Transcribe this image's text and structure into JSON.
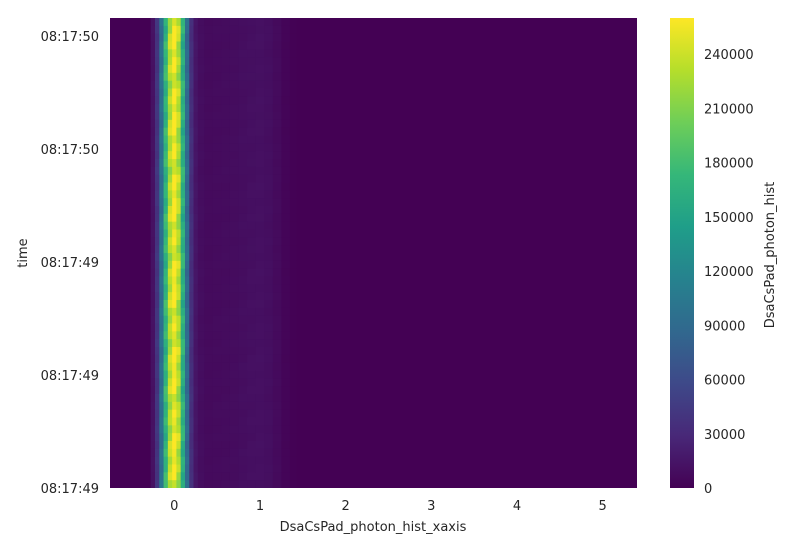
{
  "chart_data": {
    "type": "heatmap",
    "title": "",
    "xlabel": "DsaCsPad_photon_hist_xaxis",
    "ylabel": "time",
    "colorbar_label": "DsaCsPad_photon_hist",
    "colormap": "viridis",
    "colormap_stops": [
      "#440154",
      "#482878",
      "#3e4989",
      "#31688e",
      "#26828e",
      "#1f9e89",
      "#35b779",
      "#6ece58",
      "#b5de2b",
      "#fde725"
    ],
    "background": "#eaeaf2",
    "grid": false,
    "xlim": [
      -0.75,
      5.4
    ],
    "x_ticks": [
      0,
      1,
      2,
      3,
      4,
      5
    ],
    "x_tick_labels": [
      "0",
      "1",
      "2",
      "3",
      "4",
      "5"
    ],
    "y_tick_labels": [
      "08:17:50",
      "08:17:50",
      "08:17:49",
      "08:17:49",
      "08:17:49"
    ],
    "colorbar_ticks": [
      0,
      30000,
      60000,
      90000,
      120000,
      150000,
      180000,
      210000,
      240000
    ],
    "colorbar_tick_labels": [
      "0",
      "30000",
      "60000",
      "90000",
      "120000",
      "150000",
      "180000",
      "210000",
      "240000"
    ],
    "vmin": 0,
    "vmax": 260000,
    "profile": [
      {
        "x": -0.25,
        "value": 12000
      },
      {
        "x": -0.2,
        "value": 40000
      },
      {
        "x": -0.15,
        "value": 95000
      },
      {
        "x": -0.1,
        "value": 170000
      },
      {
        "x": -0.05,
        "value": 230000
      },
      {
        "x": 0.0,
        "value": 258000
      },
      {
        "x": 0.05,
        "value": 230000
      },
      {
        "x": 0.1,
        "value": 165000
      },
      {
        "x": 0.15,
        "value": 90000
      },
      {
        "x": 0.2,
        "value": 35000
      },
      {
        "x": 0.25,
        "value": 15000
      },
      {
        "x": 0.3,
        "value": 9000
      },
      {
        "x": 0.4,
        "value": 7000
      },
      {
        "x": 0.5,
        "value": 7500
      },
      {
        "x": 0.6,
        "value": 8000
      },
      {
        "x": 0.7,
        "value": 8500
      },
      {
        "x": 0.8,
        "value": 9500
      },
      {
        "x": 0.9,
        "value": 10500
      },
      {
        "x": 1.0,
        "value": 11000
      },
      {
        "x": 1.1,
        "value": 10000
      },
      {
        "x": 1.2,
        "value": 7000
      },
      {
        "x": 1.3,
        "value": 3000
      },
      {
        "x": 1.4,
        "value": 1000
      }
    ]
  }
}
